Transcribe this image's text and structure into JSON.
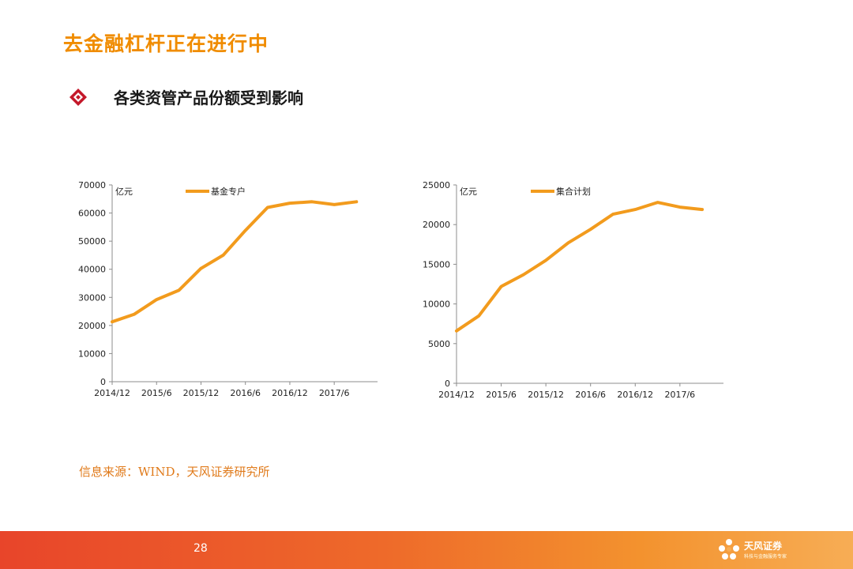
{
  "slide": {
    "title": "去金融杠杆正在进行中",
    "bullet": "各类资管产品份额受到影响",
    "source": "信息来源：WIND，天风证券研究所",
    "page_number": "28",
    "brand_name": "天风证券",
    "brand_sub": "科技与金融服务专家",
    "accent_color": "#f08c00",
    "line_color": "#f29b1d"
  },
  "chart_data": [
    {
      "type": "line",
      "unit_label": "亿元",
      "legend": "基金专户",
      "categories": [
        "2014/12",
        "2015/3",
        "2015/6",
        "2015/9",
        "2015/12",
        "2016/3",
        "2016/6",
        "2016/9",
        "2016/12",
        "2017/3",
        "2017/6",
        "2017/9"
      ],
      "x_tick_labels": [
        "2014/12",
        "2015/6",
        "2015/12",
        "2016/6",
        "2016/12",
        "2017/6"
      ],
      "series": [
        {
          "name": "基金专户",
          "values": [
            21300,
            24000,
            29200,
            32500,
            40300,
            45000,
            53800,
            62000,
            63500,
            64000,
            63000,
            64000
          ]
        }
      ],
      "ylim": [
        0,
        70000
      ],
      "y_ticks": [
        0,
        10000,
        20000,
        30000,
        40000,
        50000,
        60000,
        70000
      ],
      "grid": false,
      "legend_position": "top-center"
    },
    {
      "type": "line",
      "unit_label": "亿元",
      "legend": "集合计划",
      "categories": [
        "2014/12",
        "2015/3",
        "2015/6",
        "2015/9",
        "2015/12",
        "2016/3",
        "2016/6",
        "2016/9",
        "2016/12",
        "2017/3",
        "2017/6",
        "2017/9"
      ],
      "x_tick_labels": [
        "2014/12",
        "2015/6",
        "2015/12",
        "2016/6",
        "2016/12",
        "2017/6"
      ],
      "series": [
        {
          "name": "集合计划",
          "values": [
            6600,
            8500,
            12200,
            13700,
            15500,
            17700,
            19400,
            21300,
            21900,
            22800,
            22200,
            21900
          ]
        }
      ],
      "ylim": [
        0,
        25000
      ],
      "y_ticks": [
        0,
        5000,
        10000,
        15000,
        20000,
        25000
      ],
      "grid": false,
      "legend_position": "top-center"
    }
  ]
}
